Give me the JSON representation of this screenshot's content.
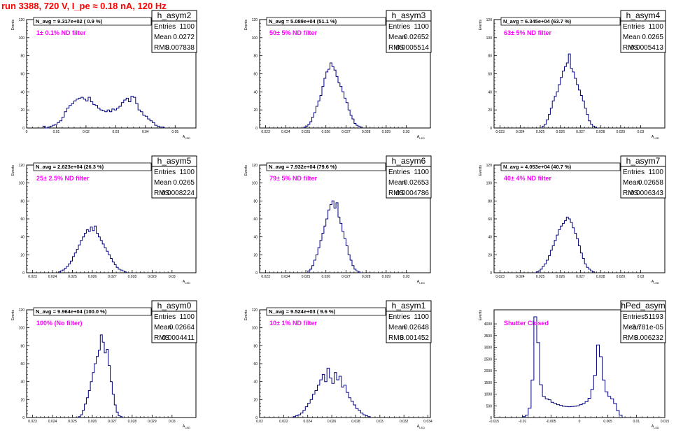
{
  "page_title": "run 3388,   720 V, I_pe ≈ 0.18 nA, 120 Hz",
  "colors": {
    "title": "#ff0000",
    "histogram": "#000080",
    "annotation": "#ff00ff",
    "frame": "#000000"
  },
  "stat_labels": {
    "entries": "Entries",
    "mean": "Mean",
    "rms": "RMS"
  },
  "chart_data": [
    {
      "type": "bar",
      "name": "h_asym2",
      "xlabel": "A_LED",
      "ylabel": "Events",
      "xlim": [
        0,
        0.057
      ],
      "ylim": [
        0,
        120
      ],
      "xticks": [
        "0",
        "0.01",
        "0.02",
        "0.03",
        "0.04",
        "0.05"
      ],
      "xtick_values": [
        0,
        0.01,
        0.02,
        0.03,
        0.04,
        0.05
      ],
      "yticks": [
        "0",
        "20",
        "40",
        "60",
        "80",
        "100",
        "120"
      ],
      "ytick_values": [
        0,
        20,
        40,
        60,
        80,
        100,
        120
      ],
      "navg": "N_avg = 9.317e+02 ( 0.9 %)",
      "filter": "1± 0.1% ND filter",
      "stats": {
        "entries": "1100",
        "mean": "0.0272",
        "rms": "0.007838"
      },
      "bins": {
        "x0": 0.0055,
        "width": 0.0008,
        "values": [
          2,
          0,
          1,
          2,
          3,
          4,
          6,
          8,
          12,
          18,
          22,
          25,
          27,
          30,
          32,
          33,
          34,
          32,
          30,
          34,
          29,
          26,
          25,
          22,
          20,
          19,
          18,
          20,
          18,
          21,
          20,
          22,
          24,
          28,
          31,
          33,
          29,
          35,
          34,
          27,
          20,
          18,
          14,
          13,
          10,
          8,
          6,
          3,
          2,
          1,
          1
        ]
      }
    },
    {
      "type": "bar",
      "name": "h_asym3",
      "xlabel": "A_LED",
      "ylabel": "Events",
      "xlim": [
        0.0227,
        0.0312
      ],
      "ylim": [
        0,
        120
      ],
      "xticks": [
        "0.023",
        "0.024",
        "0.025",
        "0.026",
        "0.027",
        "0.028",
        "0.029",
        "0.03"
      ],
      "xtick_values": [
        0.023,
        0.024,
        0.025,
        0.026,
        0.027,
        0.028,
        0.029,
        0.03
      ],
      "yticks": [
        "0",
        "20",
        "40",
        "60",
        "80",
        "100",
        "120"
      ],
      "ytick_values": [
        0,
        20,
        40,
        60,
        80,
        100,
        120
      ],
      "navg": "N_avg = 5.089e+04 (51.1 %)",
      "filter": "50± 5% ND filter",
      "stats": {
        "entries": "1100",
        "mean": "0.02652",
        "rms": "0.0005514"
      },
      "bins": {
        "x0": 0.0249,
        "width": 0.0001,
        "values": [
          1,
          2,
          4,
          7,
          12,
          17,
          24,
          30,
          36,
          46,
          55,
          62,
          65,
          72,
          68,
          64,
          57,
          50,
          46,
          40,
          33,
          28,
          20,
          14,
          10,
          5,
          3,
          2,
          1
        ]
      }
    },
    {
      "type": "bar",
      "name": "h_asym4",
      "xlabel": "A_LED",
      "ylabel": "Events",
      "xlim": [
        0.0227,
        0.0312
      ],
      "ylim": [
        0,
        120
      ],
      "xticks": [
        "0.023",
        "0.024",
        "0.025",
        "0.026",
        "0.027",
        "0.028",
        "0.029",
        "0.03"
      ],
      "xtick_values": [
        0.023,
        0.024,
        0.025,
        0.026,
        0.027,
        0.028,
        0.029,
        0.03
      ],
      "yticks": [
        "0",
        "20",
        "40",
        "60",
        "80",
        "100",
        "120"
      ],
      "ytick_values": [
        0,
        20,
        40,
        60,
        80,
        100,
        120
      ],
      "navg": "N_avg = 6.345e+04 (63.7 %)",
      "filter": "63± 5% ND filter",
      "stats": {
        "entries": "1100",
        "mean": "0.0265",
        "rms": "0.0005413"
      },
      "bins": {
        "x0": 0.0251,
        "width": 0.0001,
        "values": [
          2,
          4,
          9,
          15,
          22,
          30,
          35,
          40,
          48,
          56,
          63,
          68,
          72,
          82,
          66,
          62,
          55,
          48,
          42,
          36,
          30,
          22,
          15,
          8,
          4,
          2,
          1
        ]
      }
    },
    {
      "type": "bar",
      "name": "h_asym5",
      "xlabel": "A_LED",
      "ylabel": "Events",
      "xlim": [
        0.0227,
        0.0312
      ],
      "ylim": [
        0,
        120
      ],
      "xticks": [
        "0.023",
        "0.024",
        "0.025",
        "0.026",
        "0.027",
        "0.028",
        "0.029",
        "0.03"
      ],
      "xtick_values": [
        0.023,
        0.024,
        0.025,
        0.026,
        0.027,
        0.028,
        0.029,
        0.03
      ],
      "yticks": [
        "0",
        "20",
        "40",
        "60",
        "80",
        "100",
        "120"
      ],
      "ytick_values": [
        0,
        20,
        40,
        60,
        80,
        100,
        120
      ],
      "navg": "N_avg = 2.623e+04 (26.3 %)",
      "filter": "25± 2.5% ND filter",
      "stats": {
        "entries": "1100",
        "mean": "0.0265",
        "rms": "0.0008224"
      },
      "bins": {
        "x0": 0.0243,
        "width": 0.0001,
        "values": [
          1,
          2,
          3,
          5,
          7,
          10,
          13,
          18,
          22,
          26,
          31,
          36,
          40,
          44,
          48,
          46,
          51,
          47,
          52,
          44,
          40,
          36,
          32,
          28,
          24,
          20,
          16,
          12,
          9,
          6,
          4,
          3,
          2,
          1
        ]
      }
    },
    {
      "type": "bar",
      "name": "h_asym6",
      "xlabel": "A_LED",
      "ylabel": "Events",
      "xlim": [
        0.0227,
        0.0312
      ],
      "ylim": [
        0,
        120
      ],
      "xticks": [
        "0.023",
        "0.024",
        "0.025",
        "0.026",
        "0.027",
        "0.028",
        "0.029",
        "0.03"
      ],
      "xtick_values": [
        0.023,
        0.024,
        0.025,
        0.026,
        0.027,
        0.028,
        0.029,
        0.03
      ],
      "yticks": [
        "0",
        "20",
        "40",
        "60",
        "80",
        "100",
        "120"
      ],
      "ytick_values": [
        0,
        20,
        40,
        60,
        80,
        100,
        120
      ],
      "navg": "N_avg = 7.932e+04 (79.6 %)",
      "filter": "79± 5% ND filter",
      "stats": {
        "entries": "1100",
        "mean": "0.02653",
        "rms": "0.0004786"
      },
      "bins": {
        "x0": 0.0251,
        "width": 0.0001,
        "values": [
          2,
          4,
          8,
          14,
          20,
          28,
          36,
          44,
          52,
          60,
          70,
          76,
          80,
          72,
          78,
          62,
          55,
          46,
          38,
          30,
          20,
          14,
          8,
          4,
          2,
          1
        ]
      }
    },
    {
      "type": "bar",
      "name": "h_asym7",
      "xlabel": "A_LED",
      "ylabel": "Events",
      "xlim": [
        0.0227,
        0.0312
      ],
      "ylim": [
        0,
        120
      ],
      "xticks": [
        "0.023",
        "0.024",
        "0.025",
        "0.026",
        "0.027",
        "0.028",
        "0.029",
        "0.03"
      ],
      "xtick_values": [
        0.023,
        0.024,
        0.025,
        0.026,
        0.027,
        0.028,
        0.029,
        0.03
      ],
      "yticks": [
        "0",
        "20",
        "40",
        "60",
        "80",
        "100",
        "120"
      ],
      "ytick_values": [
        0,
        20,
        40,
        60,
        80,
        100,
        120
      ],
      "navg": "N_avg = 4.053e+04 (40.7 %)",
      "filter": "40± 4% ND filter",
      "stats": {
        "entries": "1100",
        "mean": "0.02658",
        "rms": "0.0006343"
      },
      "bins": {
        "x0": 0.0248,
        "width": 0.0001,
        "values": [
          1,
          2,
          4,
          7,
          10,
          14,
          19,
          25,
          30,
          36,
          42,
          48,
          52,
          55,
          58,
          62,
          60,
          56,
          50,
          44,
          38,
          30,
          22,
          16,
          10,
          6,
          4,
          2,
          1
        ]
      }
    },
    {
      "type": "bar",
      "name": "h_asym0",
      "xlabel": "A_LED",
      "ylabel": "Events",
      "xlim": [
        0.0227,
        0.0312
      ],
      "ylim": [
        0,
        120
      ],
      "xticks": [
        "0.023",
        "0.024",
        "0.025",
        "0.026",
        "0.027",
        "0.028",
        "0.029",
        "0.03"
      ],
      "xtick_values": [
        0.023,
        0.024,
        0.025,
        0.026,
        0.027,
        0.028,
        0.029,
        0.03
      ],
      "yticks": [
        "0",
        "20",
        "40",
        "60",
        "80",
        "100",
        "120"
      ],
      "ytick_values": [
        0,
        20,
        40,
        60,
        80,
        100,
        120
      ],
      "navg": "N_avg = 9.964e+04 (100.0 %)",
      "filter": "100% (No filter)",
      "stats": {
        "entries": "1100",
        "mean": "0.02664",
        "rms": "0.0004411"
      },
      "bins": {
        "x0": 0.0253,
        "width": 0.0001,
        "values": [
          1,
          3,
          8,
          15,
          22,
          30,
          40,
          50,
          60,
          68,
          75,
          92,
          84,
          72,
          76,
          58,
          40,
          26,
          14,
          6,
          2,
          1
        ]
      }
    },
    {
      "type": "bar",
      "name": "h_asym1",
      "xlabel": "A_LED",
      "ylabel": "Events",
      "xlim": [
        0.02,
        0.0342
      ],
      "ylim": [
        0,
        120
      ],
      "xticks": [
        "0.02",
        "0.022",
        "0.024",
        "0.026",
        "0.028",
        "0.03",
        "0.032",
        "0.034"
      ],
      "xtick_values": [
        0.02,
        0.022,
        0.024,
        0.026,
        0.028,
        0.03,
        0.032,
        0.034
      ],
      "yticks": [
        "0",
        "20",
        "40",
        "60",
        "80",
        "100",
        "120"
      ],
      "ytick_values": [
        0,
        20,
        40,
        60,
        80,
        100,
        120
      ],
      "navg": "N_avg = 9.524e+03 ( 9.6 %)",
      "filter": "10± 1% ND filter",
      "stats": {
        "entries": "1100",
        "mean": "0.02648",
        "rms": "0.001452"
      },
      "bins": {
        "x0": 0.0228,
        "width": 0.0002,
        "values": [
          1,
          2,
          3,
          5,
          8,
          12,
          16,
          20,
          26,
          30,
          36,
          42,
          48,
          40,
          55,
          44,
          38,
          50,
          42,
          46,
          34,
          36,
          28,
          22,
          18,
          14,
          10,
          8,
          5,
          3,
          2,
          1
        ]
      }
    },
    {
      "type": "bar",
      "name": "hPed_asym",
      "xlabel": "A_LED",
      "ylabel": "Events",
      "xlim": [
        -0.015,
        0.015
      ],
      "ylim": [
        0,
        4600
      ],
      "xticks": [
        "-0.015",
        "-0.01",
        "-0.005",
        "0",
        "0.005",
        "0.01",
        "0.015"
      ],
      "xtick_values": [
        -0.015,
        -0.01,
        -0.005,
        0,
        0.005,
        0.01,
        0.015
      ],
      "yticks": [
        "0",
        "500",
        "1000",
        "1500",
        "2000",
        "2500",
        "3000",
        "3500",
        "4000"
      ],
      "ytick_values": [
        0,
        500,
        1000,
        1500,
        2000,
        2500,
        3000,
        3500,
        4000
      ],
      "navg": "",
      "filter": "Shutter Closed",
      "stats": {
        "entries": "51193",
        "mean": "-3.781e-05",
        "rms": "0.006232"
      },
      "bins": {
        "x0": -0.01,
        "width": 0.0005,
        "values": [
          40,
          100,
          400,
          1600,
          4300,
          3200,
          1400,
          900,
          800,
          760,
          650,
          600,
          550,
          520,
          480,
          470,
          460,
          470,
          480,
          500,
          550,
          600,
          680,
          820,
          1200,
          1800,
          3100,
          2600,
          1600,
          1100,
          900,
          800,
          600,
          300,
          100
        ]
      }
    }
  ]
}
